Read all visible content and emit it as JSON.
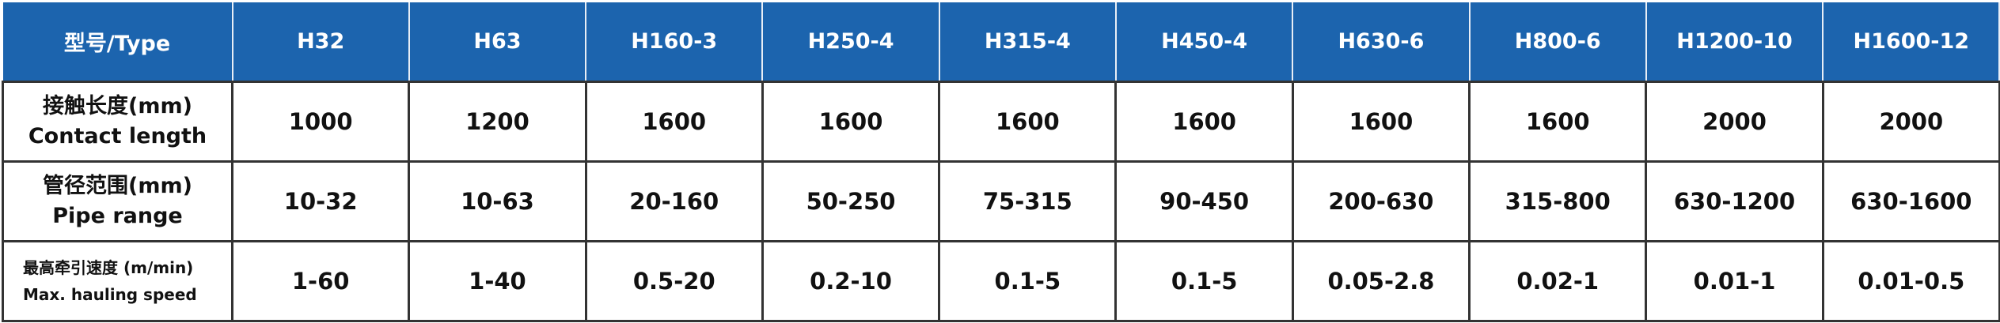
{
  "header": {
    "type_label": "型号/Type",
    "models": [
      "H32",
      "H63",
      "H160-3",
      "H250-4",
      "H315-4",
      "H450-4",
      "H630-6",
      "H800-6",
      "H1200-10",
      "H1600-12"
    ]
  },
  "rows": [
    {
      "label_cn": "接触长度(mm)",
      "label_en": "Contact length",
      "values": [
        "1000",
        "1200",
        "1600",
        "1600",
        "1600",
        "1600",
        "1600",
        "1600",
        "2000",
        "2000"
      ]
    },
    {
      "label_cn": "管径范围(mm)",
      "label_en": "Pipe range",
      "values": [
        "10-32",
        "10-63",
        "20-160",
        "50-250",
        "75-315",
        "90-450",
        "200-630",
        "315-800",
        "630-1200",
        "630-1600"
      ]
    },
    {
      "label_cn": "最高牵引速度 (m/min)",
      "label_en": "Max. hauling speed",
      "values": [
        "1-60",
        "1-40",
        "0.5-20",
        "0.2-10",
        "0.1-5",
        "0.1-5",
        "0.05-2.8",
        "0.02-1",
        "0.01-1",
        "0.01-0.5"
      ]
    }
  ],
  "colors": {
    "header_bg": "#1c64ae",
    "header_text": "#ffffff",
    "border": "#333333"
  }
}
